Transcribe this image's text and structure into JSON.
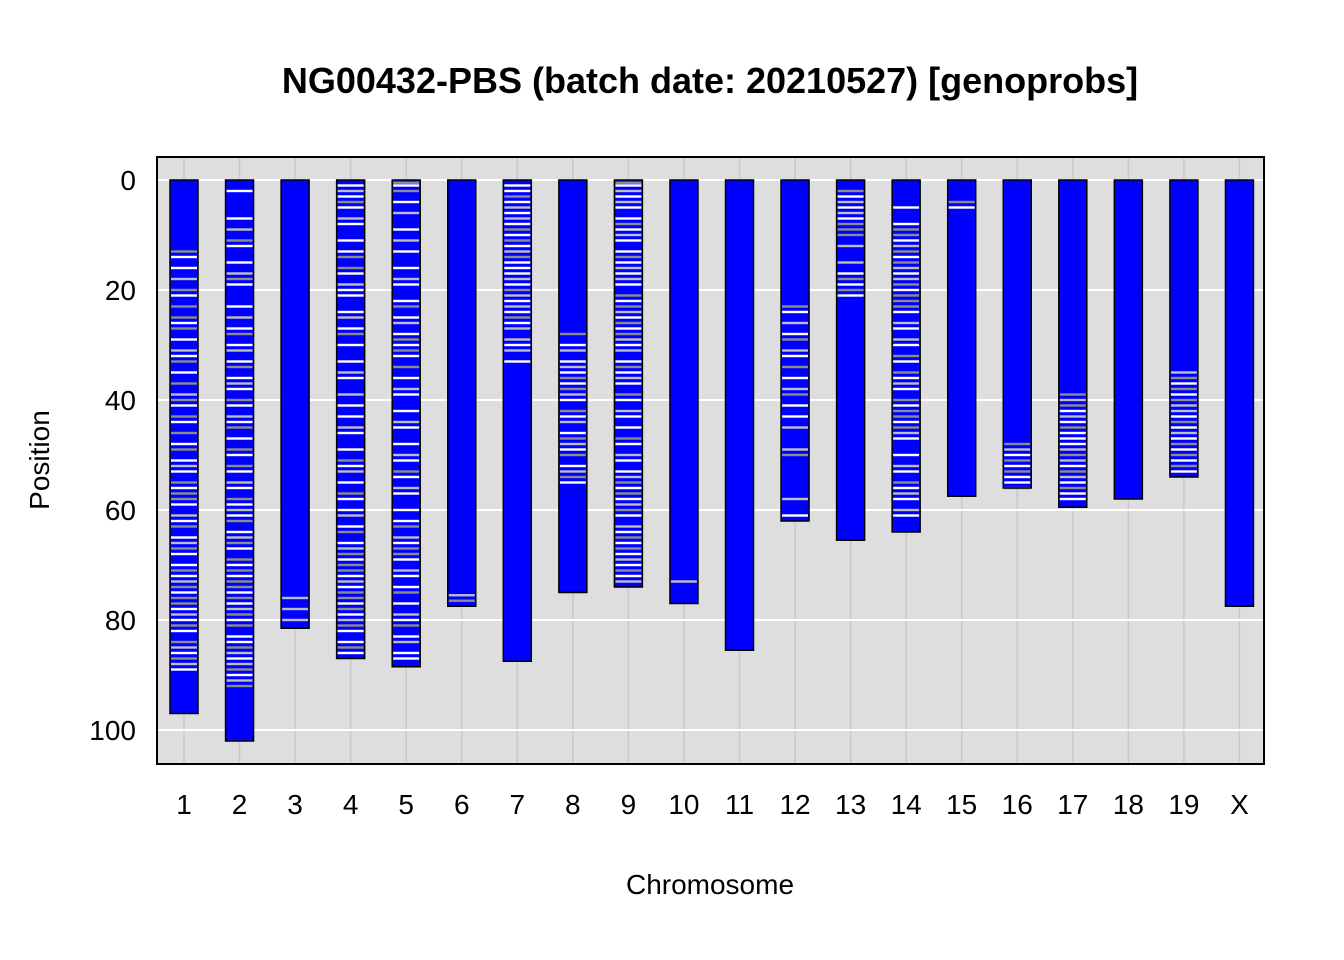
{
  "chart_data": {
    "type": "chromosome-ideogram",
    "title": "NG00432-PBS (batch date: 20210527) [genoprobs]",
    "xlabel": "Chromosome",
    "ylabel": "Position",
    "ylim": [
      0,
      105
    ],
    "y_reversed": true,
    "yticks": [
      0,
      20,
      40,
      60,
      80,
      100
    ],
    "grid": true,
    "colors": {
      "panel_background": "#DEDEDE",
      "grid_major": "#FFFFFF",
      "grid_minor": "#C8C8C8",
      "bar_fill": "#0000FF",
      "bar_border": "#000000",
      "band_white": "#FFFFFF",
      "band_gray": "#8C8C8C",
      "band_lightgray": "#BEBEBE"
    },
    "chromosomes": [
      {
        "name": "1",
        "length": 97,
        "white": [
          14,
          16,
          21,
          26,
          29,
          32,
          35,
          41,
          44,
          48,
          51,
          53,
          56,
          59,
          62,
          65,
          68,
          70,
          72,
          75,
          78,
          80,
          82,
          86,
          89
        ],
        "gray": [
          13,
          20,
          23,
          25,
          27,
          33,
          37,
          40,
          43,
          46,
          49,
          55,
          57,
          58,
          63,
          67,
          71,
          74,
          76,
          77,
          81,
          84,
          87
        ],
        "light": [
          18,
          31,
          39,
          52,
          61,
          66,
          73,
          79,
          85,
          88
        ]
      },
      {
        "name": "2",
        "length": 102,
        "white": [
          2,
          7,
          12,
          15,
          19,
          23,
          27,
          30,
          33,
          36,
          38,
          41,
          44,
          47,
          50,
          53,
          56,
          59,
          61,
          64,
          67,
          70,
          72,
          75,
          77,
          80,
          83,
          84,
          87,
          90
        ],
        "gray": [
          11,
          18,
          28,
          34,
          40,
          45,
          49,
          52,
          58,
          62,
          66,
          69,
          71,
          73,
          74,
          76,
          79,
          81,
          85,
          89,
          92
        ],
        "light": [
          9,
          17,
          25,
          31,
          37,
          43,
          55,
          60,
          65,
          78,
          86,
          88,
          91
        ]
      },
      {
        "name": "3",
        "length": 81.5,
        "white": [],
        "gray": [],
        "light": [
          76,
          78,
          80
        ]
      },
      {
        "name": "4",
        "length": 87,
        "white": [
          1,
          3,
          5,
          8,
          11,
          13,
          17,
          20,
          21,
          24,
          27,
          30,
          33,
          36,
          41,
          43,
          46,
          49,
          52,
          55,
          58,
          60,
          63,
          66,
          69,
          72,
          74,
          77,
          79,
          82,
          84,
          86
        ],
        "gray": [
          4,
          14,
          16,
          28,
          51,
          57,
          64,
          68,
          70,
          71,
          75,
          76,
          78,
          81,
          85
        ],
        "light": [
          2,
          7,
          19,
          25,
          35,
          39,
          45,
          53,
          61,
          67,
          73,
          80
        ]
      },
      {
        "name": "5",
        "length": 88.5,
        "white": [
          1,
          4,
          9,
          13,
          16,
          19,
          22,
          25,
          28,
          30,
          32,
          36,
          39,
          42,
          45,
          48,
          51,
          54,
          57,
          60,
          62,
          66,
          69,
          72,
          74,
          77,
          80,
          83,
          86,
          87
        ],
        "gray": [
          0.5,
          2,
          23,
          29,
          31,
          34,
          53,
          63,
          67,
          68,
          75,
          81
        ],
        "light": [
          6,
          11,
          18,
          26,
          38,
          44,
          50,
          56,
          65,
          71,
          79,
          84
        ]
      },
      {
        "name": "6",
        "length": 77.5,
        "white": [],
        "gray": [
          76.5
        ],
        "light": [
          75.5
        ]
      },
      {
        "name": "7",
        "length": 87.5,
        "white": [
          1,
          2,
          4,
          6,
          8,
          10,
          12,
          15,
          16,
          17,
          19,
          22,
          24,
          26,
          30,
          33
        ],
        "gray": [
          3,
          9,
          11,
          14,
          20,
          25
        ],
        "light": [
          5,
          7,
          13,
          18,
          21,
          23,
          27,
          29,
          31
        ]
      },
      {
        "name": "8",
        "length": 75,
        "white": [
          30,
          33,
          35,
          37,
          40,
          43,
          46,
          49,
          52,
          55
        ],
        "gray": [
          28,
          36,
          38,
          42,
          47,
          50,
          54
        ],
        "light": [
          31,
          34,
          39,
          44,
          48,
          53
        ]
      },
      {
        "name": "9",
        "length": 74,
        "white": [
          1,
          3,
          5,
          7,
          9,
          11,
          13,
          15,
          17,
          19,
          22,
          25,
          27,
          30,
          33,
          35,
          37,
          40,
          43,
          45,
          48,
          51,
          53,
          56,
          58,
          61,
          64,
          66,
          68,
          70,
          72
        ],
        "gray": [
          0.5,
          8,
          14,
          21,
          23,
          26,
          28,
          34,
          39,
          47,
          55,
          57,
          60,
          65,
          67,
          71
        ],
        "light": [
          2,
          4,
          10,
          16,
          18,
          24,
          29,
          31,
          36,
          42,
          50,
          54,
          59,
          63,
          69,
          73
        ]
      },
      {
        "name": "10",
        "length": 77,
        "white": [],
        "gray": [],
        "light": [
          73
        ]
      },
      {
        "name": "11",
        "length": 85.5,
        "white": [],
        "gray": [],
        "light": []
      },
      {
        "name": "12",
        "length": 62,
        "white": [
          24,
          28,
          32,
          36,
          41,
          43,
          61
        ],
        "gray": [
          23,
          29,
          34,
          39,
          50
        ],
        "light": [
          26,
          31,
          38,
          45,
          49,
          58
        ]
      },
      {
        "name": "13",
        "length": 65.5,
        "white": [
          3,
          5,
          7,
          17,
          19,
          21
        ],
        "gray": [
          2,
          8,
          9,
          10,
          18,
          20
        ],
        "light": [
          4,
          6,
          12,
          15
        ]
      },
      {
        "name": "14",
        "length": 64,
        "white": [
          5,
          8,
          11,
          14,
          17,
          20,
          24,
          27,
          30,
          33,
          36,
          38,
          41,
          44,
          47,
          50,
          53,
          56,
          58,
          61
        ],
        "gray": [
          9,
          10,
          13,
          15,
          19,
          21,
          22,
          23,
          32,
          35,
          40,
          42,
          43,
          45,
          55
        ],
        "light": [
          12,
          16,
          18,
          26,
          29,
          37,
          46,
          52,
          57,
          60
        ]
      },
      {
        "name": "15",
        "length": 57.5,
        "white": [
          5
        ],
        "gray": [
          4
        ],
        "light": []
      },
      {
        "name": "16",
        "length": 56,
        "white": [
          50,
          52,
          54,
          55
        ],
        "gray": [
          48,
          51,
          53,
          56
        ],
        "light": [
          49
        ]
      },
      {
        "name": "17",
        "length": 59.5,
        "white": [
          42,
          44,
          46,
          47,
          48,
          52,
          55,
          57,
          58
        ],
        "gray": [
          39,
          41,
          45,
          50,
          53,
          56
        ],
        "light": [
          40,
          43,
          49,
          51,
          54
        ]
      },
      {
        "name": "18",
        "length": 58,
        "white": [],
        "gray": [],
        "light": []
      },
      {
        "name": "19",
        "length": 54,
        "white": [
          37,
          39,
          43,
          45,
          47,
          49,
          51,
          53
        ],
        "gray": [
          36,
          38,
          40,
          44,
          48,
          50,
          52
        ],
        "light": [
          35,
          41,
          42,
          46
        ]
      },
      {
        "name": "X",
        "length": 77.5,
        "white": [],
        "gray": [],
        "light": []
      }
    ]
  }
}
